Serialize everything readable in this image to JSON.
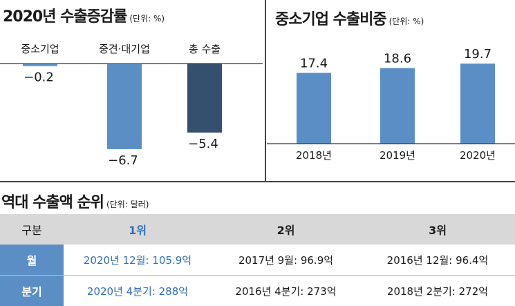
{
  "chart_data": [
    {
      "type": "bar",
      "title": "2020년 수출증감률",
      "unit": "(단위: %)",
      "categories": [
        "중소기업",
        "중견·대기업",
        "총 수출"
      ],
      "values": [
        -0.2,
        -6.7,
        -5.4
      ],
      "value_labels": [
        "−0.2",
        "−6.7",
        "−5.4"
      ],
      "ylim": [
        -8,
        0
      ],
      "colors": [
        "#5b8ec4",
        "#5b8ec4",
        "#35506e"
      ]
    },
    {
      "type": "bar",
      "title": "중소기업 수출비중",
      "unit": "(단위: %)",
      "categories": [
        "2018년",
        "2019년",
        "2020년"
      ],
      "values": [
        17.4,
        18.6,
        19.7
      ],
      "value_labels": [
        "17.4",
        "18.6",
        "19.7"
      ],
      "ylim": [
        0,
        19.7
      ],
      "colors": [
        "#5b8ec4",
        "#5b8ec4",
        "#5b8ec4"
      ]
    },
    {
      "type": "table",
      "title": "역대 수출액 순위",
      "unit": "(단위: 달러)",
      "header": [
        "구분",
        "1위",
        "2위",
        "3위"
      ],
      "rows": [
        {
          "label": "월",
          "cells": [
            "2020년 12월: 105.9억",
            "2017년 9월: 96.9억",
            "2016년 12월: 96.4억"
          ]
        },
        {
          "label": "분기",
          "cells": [
            "2020년 4분기: 288억",
            "2016년 4분기: 273억",
            "2018년 2분기: 272억"
          ]
        }
      ],
      "highlight_color": "#2f6fb5"
    }
  ]
}
